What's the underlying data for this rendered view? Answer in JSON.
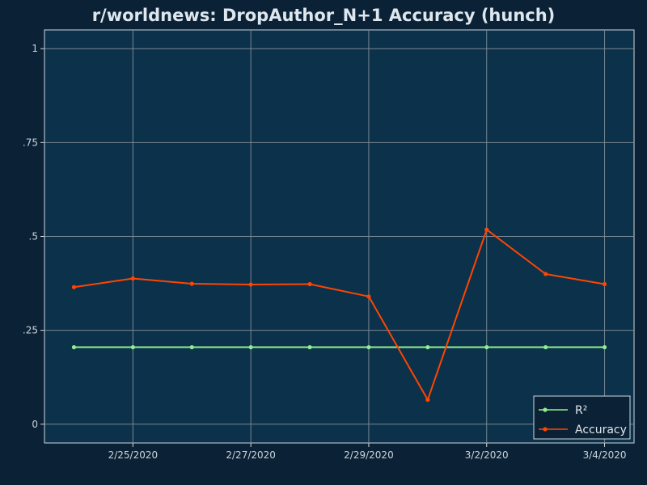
{
  "chart_data": {
    "type": "line",
    "title": "r/worldnews: DropAuthor_N+1 Accuracy (hunch)",
    "xlabel": "",
    "ylabel": "",
    "x": [
      "2020-02-24",
      "2020-02-25",
      "2020-02-26",
      "2020-02-27",
      "2020-02-28",
      "2020-02-29",
      "2020-03-01",
      "2020-03-02",
      "2020-03-03",
      "2020-03-04"
    ],
    "x_ticks": [
      {
        "date": "2020-02-25",
        "label": "2/25/2020"
      },
      {
        "date": "2020-02-27",
        "label": "2/27/2020"
      },
      {
        "date": "2020-02-29",
        "label": "2/29/2020"
      },
      {
        "date": "2020-03-02",
        "label": "3/2/2020"
      },
      {
        "date": "2020-03-04",
        "label": "3/4/2020"
      }
    ],
    "xlim": [
      "2020-02-23T12:00",
      "2020-03-04T12:00"
    ],
    "y_ticks": [
      {
        "value": 0,
        "label": "0"
      },
      {
        "value": 0.25,
        "label": ".25"
      },
      {
        "value": 0.5,
        "label": ".5"
      },
      {
        "value": 0.75,
        "label": ".75"
      },
      {
        "value": 1,
        "label": "1"
      }
    ],
    "ylim": [
      -0.05,
      1.05
    ],
    "grid": true,
    "legend_position": "bottom-right",
    "series": [
      {
        "name": "R²",
        "color": "#90ee90",
        "values": [
          0.205,
          0.205,
          0.205,
          0.205,
          0.205,
          0.205,
          0.205,
          0.205,
          0.205,
          0.205
        ]
      },
      {
        "name": "Accuracy",
        "color": "#ff4500",
        "values": [
          0.365,
          0.388,
          0.374,
          0.372,
          0.373,
          0.34,
          0.065,
          0.518,
          0.4,
          0.373
        ]
      }
    ],
    "background_color": "#0b2236",
    "plot_color": "#0b314b",
    "grid_color": "#7a8792"
  }
}
